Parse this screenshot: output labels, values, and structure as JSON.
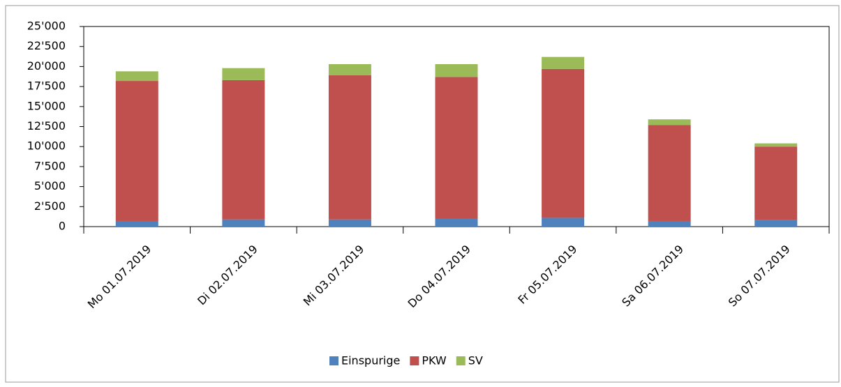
{
  "chart_data": {
    "type": "stacked_bar",
    "categories": [
      "Mo 01.07.2019",
      "Di 02.07.2019",
      "Mi 03.07.2019",
      "Do 04.07.2019",
      "Fr 05.07.2019",
      "Sa 06.07.2019",
      "So 07.07.2019"
    ],
    "series": [
      {
        "name": "Einspurige",
        "color": "#4f81bd",
        "values": [
          700,
          900,
          900,
          1000,
          1100,
          700,
          800
        ]
      },
      {
        "name": "PKW",
        "color": "#c0504d",
        "values": [
          17500,
          17400,
          18000,
          17700,
          18600,
          12000,
          9200
        ]
      },
      {
        "name": "SV",
        "color": "#9bbb59",
        "values": [
          1200,
          1500,
          1400,
          1600,
          1500,
          700,
          400
        ]
      }
    ],
    "ylim": [
      0,
      25000
    ],
    "yticks": [
      0,
      {
        "value": 2500,
        "label": "2'500"
      },
      {
        "value": 5000,
        "label": "5'000"
      },
      {
        "value": 7500,
        "label": "7'500"
      },
      {
        "value": 10000,
        "label": "10'000"
      },
      {
        "value": 12500,
        "label": "12'500"
      },
      {
        "value": 15000,
        "label": "15'000"
      },
      {
        "value": 17500,
        "label": "17'500"
      },
      {
        "value": 20000,
        "label": "20'000"
      },
      {
        "value": 22500,
        "label": "22'500"
      },
      {
        "value": 25000,
        "label": "25'000"
      }
    ],
    "legend": "bottom"
  }
}
